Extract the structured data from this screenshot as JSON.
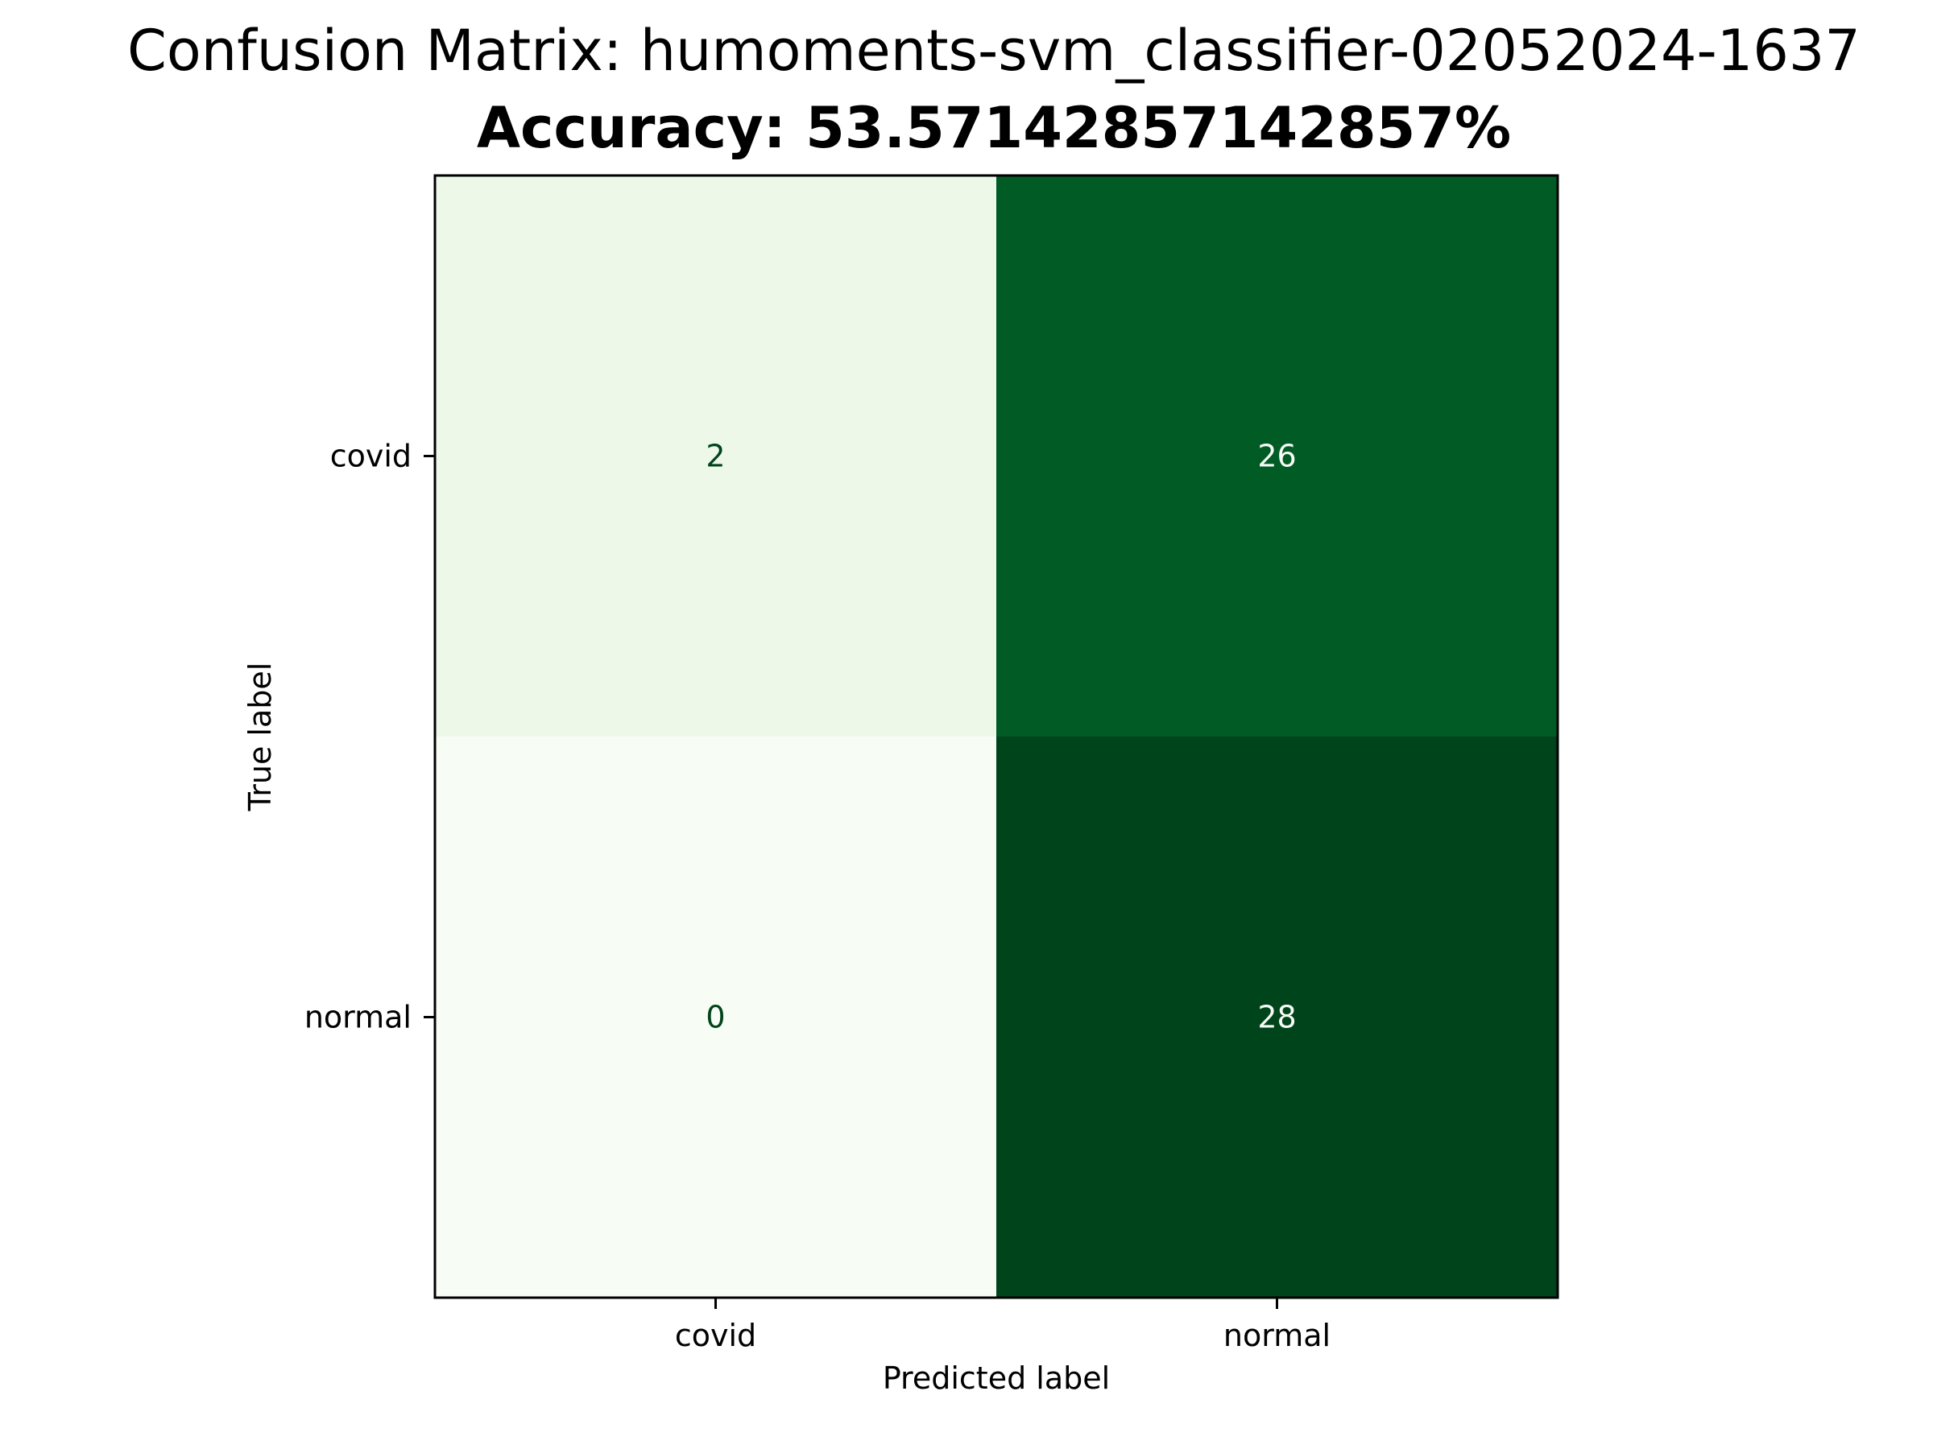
{
  "chart_data": {
    "type": "heatmap",
    "title": "Confusion Matrix: humoments-svm_classifier-02052024-1637",
    "subtitle": "Accuracy: 53.57142857142857%",
    "xlabel": "Predicted label",
    "ylabel": "True label",
    "x_categories": [
      "covid",
      "normal"
    ],
    "y_categories": [
      "covid",
      "normal"
    ],
    "matrix": [
      [
        2,
        26
      ],
      [
        0,
        28
      ]
    ],
    "colormap": "Greens",
    "colorbar": false,
    "grid": false,
    "colors": {
      "low": "#f7fcf5",
      "high": "#00441b",
      "text_on_light": "#00441b",
      "text_on_dark": "#f7fcf5"
    }
  }
}
